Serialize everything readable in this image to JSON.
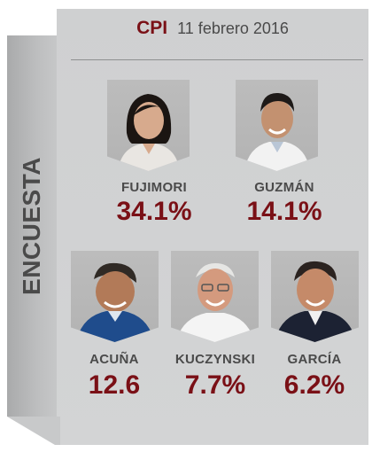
{
  "side_label": "ENCUESTA",
  "header": {
    "source": "CPI",
    "date": "11 febrero 2016"
  },
  "colors": {
    "accent": "#7a1016",
    "panel": "#d1d2d3",
    "text": "#4a4a4a"
  },
  "chart_data": {
    "type": "table",
    "title": "CPI 11 febrero 2016",
    "categories": [
      "FUJIMORI",
      "GUZMÁN",
      "ACUÑA",
      "KUCZYNSKI",
      "GARCÍA"
    ],
    "values": [
      34.1,
      14.1,
      12.6,
      7.7,
      6.2
    ],
    "value_labels": [
      "34.1%",
      "14.1%",
      "12.6",
      "7.7%",
      "6.2%"
    ]
  },
  "candidates": [
    {
      "name": "FUJIMORI",
      "value": "34.1%",
      "photo": "candidate-photo-woman-icon"
    },
    {
      "name": "GUZMÁN",
      "value": "14.1%",
      "photo": "candidate-photo-man-icon"
    },
    {
      "name": "ACUÑA",
      "value": "12.6",
      "photo": "candidate-photo-man-icon"
    },
    {
      "name": "KUCZYNSKI",
      "value": "7.7%",
      "photo": "candidate-photo-man-icon"
    },
    {
      "name": "GARCÍA",
      "value": "6.2%",
      "photo": "candidate-photo-man-icon"
    }
  ]
}
